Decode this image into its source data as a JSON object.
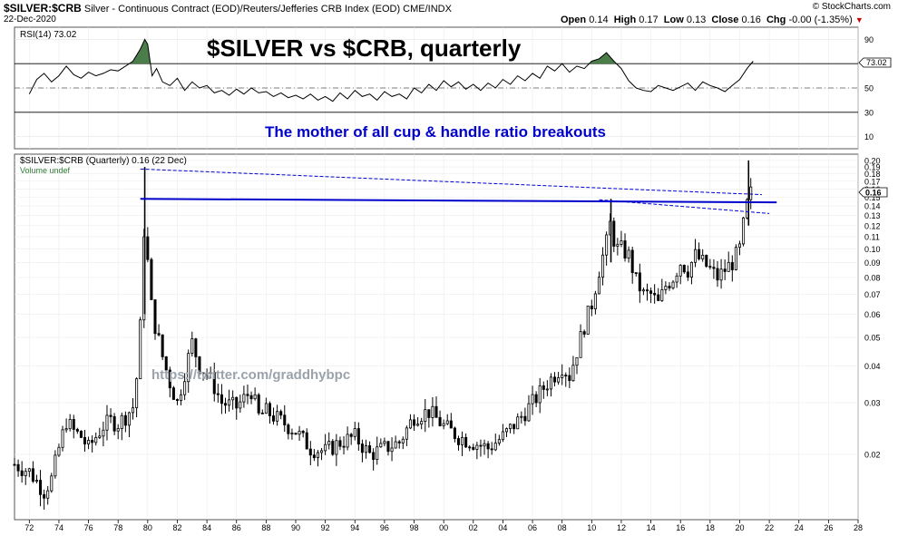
{
  "header": {
    "symbol": "$SILVER:$CRB",
    "description": "Silver - Continuous Contract (EOD)/Reuters/Jefferies CRB Index (EOD)  CME/INDX",
    "date": "22-Dec-2020",
    "brand": "© StockCharts.com",
    "open_label": "Open",
    "open": "0.14",
    "high_label": "High",
    "high": "0.17",
    "low_label": "Low",
    "low": "0.13",
    "close_label": "Close",
    "close": "0.16",
    "chg_label": "Chg",
    "chg": "-0.00 (-1.35%)",
    "dropdown_icon": "chevron-down-icon"
  },
  "annotations": {
    "title": "$SILVER vs $CRB, quarterly",
    "subtitle": "The mother of all cup & handle ratio breakouts",
    "watermark": "https://twitter.com/graddhybpc",
    "subtitle_color": "#0000cc"
  },
  "chart_data": [
    {
      "type": "line",
      "name": "rsi-panel",
      "legend": "RSI(14) 73.02",
      "last_value_label": "73.02",
      "last_value": 73.02,
      "ylim": [
        0,
        100
      ],
      "yticks": [
        "90",
        "70",
        "50",
        "30",
        "10"
      ],
      "reference_lines": [
        70,
        50,
        30
      ],
      "fill_above": 70,
      "fill_color": "#4a7d4a",
      "x_range": [
        1971,
        2028
      ],
      "x": [
        1972.0,
        1972.5,
        1973.0,
        1973.5,
        1974.0,
        1974.5,
        1975.0,
        1975.5,
        1976.0,
        1976.5,
        1977.0,
        1977.5,
        1978.0,
        1978.5,
        1979.0,
        1979.5,
        1979.8,
        1980.0,
        1980.3,
        1980.6,
        1981.0,
        1981.5,
        1982.0,
        1982.5,
        1983.0,
        1983.5,
        1984.0,
        1984.5,
        1985.0,
        1985.5,
        1986.0,
        1986.5,
        1987.0,
        1987.5,
        1988.0,
        1988.5,
        1989.0,
        1989.5,
        1990.0,
        1990.5,
        1991.0,
        1991.5,
        1992.0,
        1992.5,
        1993.0,
        1993.5,
        1994.0,
        1994.5,
        1995.0,
        1995.5,
        1996.0,
        1996.5,
        1997.0,
        1997.5,
        1998.0,
        1998.5,
        1999.0,
        1999.5,
        2000.0,
        2000.5,
        2001.0,
        2001.5,
        2002.0,
        2002.5,
        2003.0,
        2003.5,
        2004.0,
        2004.5,
        2005.0,
        2005.5,
        2006.0,
        2006.5,
        2007.0,
        2007.5,
        2008.0,
        2008.5,
        2009.0,
        2009.5,
        2010.0,
        2010.5,
        2011.0,
        2011.5,
        2012.0,
        2012.5,
        2013.0,
        2013.5,
        2014.0,
        2014.5,
        2015.0,
        2015.5,
        2016.0,
        2016.5,
        2017.0,
        2017.5,
        2018.0,
        2018.5,
        2019.0,
        2019.5,
        2020.0,
        2020.5,
        2020.9
      ],
      "y": [
        45,
        57,
        62,
        55,
        60,
        68,
        61,
        58,
        63,
        60,
        62,
        65,
        64,
        68,
        72,
        82,
        90,
        86,
        60,
        66,
        55,
        52,
        58,
        48,
        55,
        50,
        52,
        46,
        48,
        44,
        49,
        45,
        50,
        46,
        47,
        43,
        46,
        42,
        44,
        41,
        45,
        40,
        43,
        39,
        46,
        41,
        48,
        43,
        45,
        40,
        47,
        43,
        45,
        41,
        50,
        46,
        53,
        48,
        56,
        51,
        55,
        49,
        53,
        48,
        54,
        50,
        57,
        53,
        60,
        56,
        62,
        58,
        68,
        64,
        70,
        63,
        68,
        66,
        72,
        74,
        79,
        72,
        66,
        56,
        50,
        48,
        47,
        52,
        50,
        48,
        51,
        54,
        48,
        55,
        52,
        50,
        47,
        52,
        57,
        66,
        72
      ]
    },
    {
      "type": "candlestick",
      "name": "price-panel",
      "legend": "$SILVER:$CRB (Quarterly) 0.16 (22 Dec)",
      "volume_legend": "Volume undef",
      "last_value_label": "0.16",
      "last_value": 0.16,
      "y_scale": "log",
      "ylim": [
        0.012,
        0.21
      ],
      "yticks": [
        "0.20",
        "0.19",
        "0.18",
        "0.17",
        "0.16",
        "0.15",
        "0.14",
        "0.13",
        "0.12",
        "0.11",
        "0.10",
        "0.09",
        "0.08",
        "0.07",
        "0.06",
        "0.05",
        "0.04",
        "0.03",
        "0.02"
      ],
      "ytick_values": [
        0.2,
        0.19,
        0.18,
        0.17,
        0.16,
        0.15,
        0.14,
        0.13,
        0.12,
        0.11,
        0.1,
        0.09,
        0.08,
        0.07,
        0.06,
        0.05,
        0.04,
        0.03,
        0.02
      ],
      "x_range": [
        1971,
        2028
      ],
      "xticks": [
        "72",
        "74",
        "76",
        "78",
        "80",
        "82",
        "84",
        "86",
        "88",
        "90",
        "92",
        "94",
        "96",
        "98",
        "00",
        "02",
        "04",
        "06",
        "08",
        "10",
        "12",
        "14",
        "16",
        "18",
        "20",
        "22",
        "24",
        "26",
        "28"
      ],
      "xtick_values": [
        1972,
        1974,
        1976,
        1978,
        1980,
        1982,
        1984,
        1986,
        1988,
        1990,
        1992,
        1994,
        1996,
        1998,
        2000,
        2002,
        2004,
        2006,
        2008,
        2010,
        2012,
        2014,
        2016,
        2018,
        2020,
        2022,
        2024,
        2026,
        2028
      ],
      "anchors": [
        [
          1971.0,
          0.0185
        ],
        [
          1972.0,
          0.0175
        ],
        [
          1973.0,
          0.015
        ],
        [
          1973.5,
          0.0165
        ],
        [
          1974.0,
          0.021
        ],
        [
          1974.5,
          0.026
        ],
        [
          1975.0,
          0.024
        ],
        [
          1975.5,
          0.023
        ],
        [
          1976.0,
          0.021
        ],
        [
          1976.5,
          0.023
        ],
        [
          1977.0,
          0.025
        ],
        [
          1977.5,
          0.026
        ],
        [
          1978.0,
          0.0255
        ],
        [
          1978.5,
          0.027
        ],
        [
          1979.0,
          0.029
        ],
        [
          1979.3,
          0.038
        ],
        [
          1979.6,
          0.065
        ],
        [
          1979.8,
          0.14
        ],
        [
          1980.0,
          0.09
        ],
        [
          1980.3,
          0.06
        ],
        [
          1980.7,
          0.05
        ],
        [
          1981.0,
          0.043
        ],
        [
          1981.5,
          0.035
        ],
        [
          1982.0,
          0.03
        ],
        [
          1982.5,
          0.038
        ],
        [
          1983.0,
          0.048
        ],
        [
          1983.5,
          0.04
        ],
        [
          1984.0,
          0.038
        ],
        [
          1984.5,
          0.034
        ],
        [
          1985.0,
          0.03
        ],
        [
          1986.0,
          0.029
        ],
        [
          1987.0,
          0.033
        ],
        [
          1987.5,
          0.027
        ],
        [
          1988.0,
          0.028
        ],
        [
          1989.0,
          0.026
        ],
        [
          1990.0,
          0.024
        ],
        [
          1991.0,
          0.021
        ],
        [
          1992.0,
          0.0205
        ],
        [
          1993.0,
          0.022
        ],
        [
          1994.0,
          0.023
        ],
        [
          1995.0,
          0.02
        ],
        [
          1996.0,
          0.021
        ],
        [
          1997.0,
          0.022
        ],
        [
          1998.0,
          0.027
        ],
        [
          1999.0,
          0.028
        ],
        [
          2000.0,
          0.025
        ],
        [
          2001.0,
          0.023
        ],
        [
          2002.0,
          0.022
        ],
        [
          2003.0,
          0.021
        ],
        [
          2004.0,
          0.023
        ],
        [
          2005.0,
          0.026
        ],
        [
          2006.0,
          0.03
        ],
        [
          2007.0,
          0.035
        ],
        [
          2008.0,
          0.04
        ],
        [
          2008.5,
          0.037
        ],
        [
          2009.0,
          0.045
        ],
        [
          2009.5,
          0.055
        ],
        [
          2010.0,
          0.065
        ],
        [
          2010.5,
          0.085
        ],
        [
          2011.0,
          0.105
        ],
        [
          2011.3,
          0.125
        ],
        [
          2011.6,
          0.1
        ],
        [
          2012.0,
          0.1
        ],
        [
          2012.5,
          0.095
        ],
        [
          2013.0,
          0.078
        ],
        [
          2013.5,
          0.07
        ],
        [
          2014.0,
          0.07
        ],
        [
          2014.5,
          0.065
        ],
        [
          2015.0,
          0.075
        ],
        [
          2015.5,
          0.08
        ],
        [
          2016.0,
          0.09
        ],
        [
          2016.5,
          0.085
        ],
        [
          2017.0,
          0.095
        ],
        [
          2017.5,
          0.09
        ],
        [
          2018.0,
          0.085
        ],
        [
          2018.5,
          0.08
        ],
        [
          2019.0,
          0.085
        ],
        [
          2019.5,
          0.09
        ],
        [
          2020.0,
          0.1
        ],
        [
          2020.3,
          0.125
        ],
        [
          2020.6,
          0.15
        ],
        [
          2020.9,
          0.16
        ]
      ],
      "horizontal_line": {
        "x0": 1979.5,
        "x1": 2022.5,
        "y0": 0.148,
        "y1": 0.144,
        "color": "#0000cc"
      },
      "channel_upper": {
        "x0": 1979.5,
        "x1": 2021.5,
        "y0": 0.187,
        "y1": 0.153,
        "color": "#0000cc",
        "dashed": true
      },
      "channel_lower": {
        "x0": 2010.5,
        "x1": 2022.0,
        "y0": 0.147,
        "y1": 0.132,
        "color": "#0000cc",
        "dashed": true
      }
    }
  ]
}
